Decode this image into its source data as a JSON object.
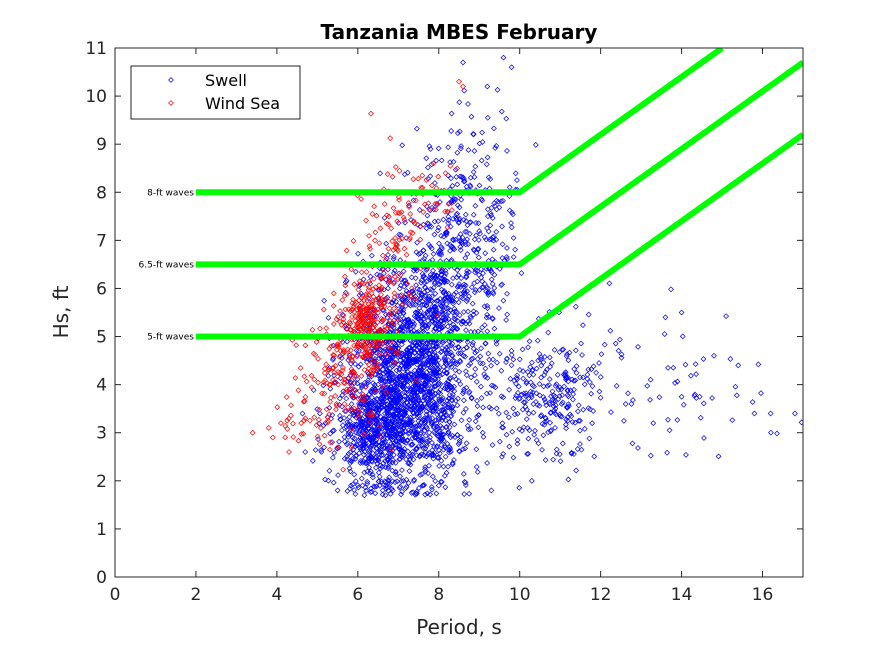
{
  "chart_data": {
    "type": "scatter",
    "title": "Tanzania MBES February",
    "xlabel": "Period, s",
    "ylabel": "Hs, ft",
    "xlim": [
      0,
      17
    ],
    "ylim": [
      0,
      11
    ],
    "xticks": [
      0,
      2,
      4,
      6,
      8,
      10,
      12,
      14,
      16
    ],
    "yticks": [
      0,
      1,
      2,
      3,
      4,
      5,
      6,
      7,
      8,
      9,
      10,
      11
    ],
    "grid": false,
    "legend_position": "top-left",
    "series": [
      {
        "name": "Swell",
        "color": "#0000ff",
        "marker": "diamond",
        "clusters": [
          {
            "cx": 7.3,
            "cy": 4.2,
            "sx": 0.75,
            "sy": 1.2,
            "n": 1700
          },
          {
            "cx": 6.4,
            "cy": 3.1,
            "sx": 0.55,
            "sy": 0.6,
            "n": 500
          },
          {
            "cx": 8.3,
            "cy": 6.2,
            "sx": 0.55,
            "sy": 1.3,
            "n": 400
          },
          {
            "cx": 9.1,
            "cy": 7.2,
            "sx": 0.5,
            "sy": 1.5,
            "n": 170
          },
          {
            "cx": 10.6,
            "cy": 3.7,
            "sx": 0.7,
            "sy": 0.65,
            "n": 260
          },
          {
            "cx": 12.8,
            "cy": 4.2,
            "sx": 1.2,
            "sy": 0.8,
            "n": 50
          },
          {
            "cx": 14.8,
            "cy": 3.7,
            "sx": 1.0,
            "sy": 0.5,
            "n": 25
          }
        ],
        "points": [
          {
            "x": 16.8,
            "y": 3.4
          },
          {
            "x": 16.2,
            "y": 3.4
          },
          {
            "x": 15.8,
            "y": 3.4
          },
          {
            "x": 15.4,
            "y": 4.4
          },
          {
            "x": 14.8,
            "y": 4.6
          },
          {
            "x": 14.0,
            "y": 5.5
          },
          {
            "x": 13.6,
            "y": 5.4
          },
          {
            "x": 13.3,
            "y": 3.2
          },
          {
            "x": 9.6,
            "y": 10.8
          },
          {
            "x": 9.8,
            "y": 10.6
          },
          {
            "x": 9.2,
            "y": 10.2
          },
          {
            "x": 8.6,
            "y": 10.7
          },
          {
            "x": 5.1,
            "y": 2.6
          },
          {
            "x": 4.7,
            "y": 2.6
          },
          {
            "x": 5.5,
            "y": 1.8
          },
          {
            "x": 9.3,
            "y": 1.8
          },
          {
            "x": 10.3,
            "y": 2.0
          },
          {
            "x": 8.0,
            "y": 1.9
          }
        ]
      },
      {
        "name": "Wind Sea",
        "color": "#ff0000",
        "marker": "diamond",
        "clusters": [
          {
            "cx": 6.2,
            "cy": 5.3,
            "sx": 0.35,
            "sy": 0.5,
            "n": 220
          },
          {
            "cx": 5.8,
            "cy": 4.3,
            "sx": 0.5,
            "sy": 0.7,
            "n": 150
          },
          {
            "cx": 6.8,
            "cy": 6.7,
            "sx": 0.5,
            "sy": 0.9,
            "n": 130
          },
          {
            "cx": 7.8,
            "cy": 7.9,
            "sx": 0.35,
            "sy": 0.45,
            "n": 35
          },
          {
            "cx": 4.9,
            "cy": 3.5,
            "sx": 0.55,
            "sy": 0.5,
            "n": 45
          }
        ],
        "points": [
          {
            "x": 3.4,
            "y": 3.0
          },
          {
            "x": 3.8,
            "y": 3.1
          },
          {
            "x": 3.9,
            "y": 2.9
          },
          {
            "x": 4.3,
            "y": 2.6
          },
          {
            "x": 8.6,
            "y": 10.2
          },
          {
            "x": 8.5,
            "y": 10.3
          },
          {
            "x": 4.6,
            "y": 3.2
          },
          {
            "x": 4.1,
            "y": 3.2
          }
        ]
      }
    ],
    "threshold_lines": [
      {
        "label": "8-ft waves",
        "x": [
          2,
          10,
          15
        ],
        "y": [
          8,
          8,
          11
        ],
        "color": "#00ff00"
      },
      {
        "label": "6.5-ft waves",
        "x": [
          2,
          10,
          17
        ],
        "y": [
          6.5,
          6.5,
          10.7
        ],
        "color": "#00ff00"
      },
      {
        "label": "5-ft waves",
        "x": [
          2,
          10,
          17
        ],
        "y": [
          5,
          5,
          9.2
        ],
        "color": "#00ff00"
      }
    ]
  }
}
